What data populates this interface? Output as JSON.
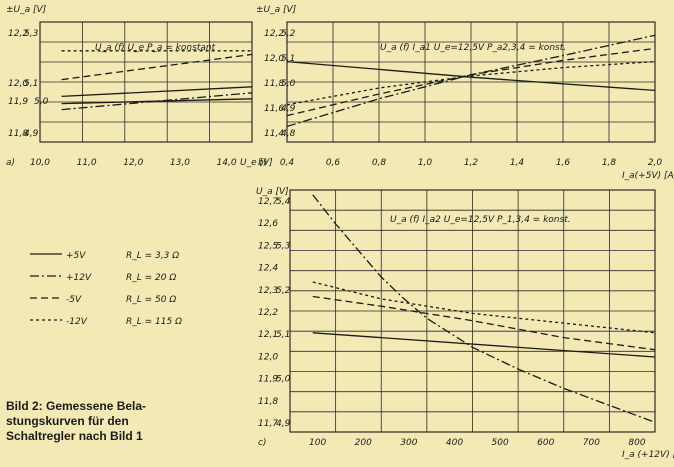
{
  "caption": "Bild 2: Gemessene Bela-\nstungskurven für den\nSchaltregler nach Bild 1",
  "legend": [
    {
      "label": "+5V",
      "rl": "R_L = 3,3 Ω",
      "style": "solid"
    },
    {
      "label": "+12V",
      "rl": "R_L = 20 Ω",
      "style": "dashdot"
    },
    {
      "label": "-5V",
      "rl": "R_L = 50 Ω",
      "style": "dashed"
    },
    {
      "label": "-12V",
      "rl": "R_L = 115 Ω",
      "style": "shortdash"
    }
  ],
  "chart_data": [
    {
      "id": "a",
      "type": "line",
      "panel_label": "a)",
      "title": "U_a (f) U_e   P_a = konstant",
      "ylabel": "±U_a [V]",
      "xlabel": "U_e [V]",
      "x_ticks": [
        "10,0",
        "11,0",
        "12,0",
        "13,0",
        "14,0"
      ],
      "y_ticks_left": [
        "12,2",
        "12,0",
        "11,8"
      ],
      "y_ticks_mid": [
        "5,3",
        "5,1",
        "4,9"
      ],
      "y_ticks_mid2": [
        "11,9",
        "5,0"
      ],
      "xlim": [
        10,
        14.9
      ],
      "series": [
        {
          "style": "solid",
          "x": [
            10.5,
            14.9
          ],
          "y": [
            0.32,
            0.36
          ]
        },
        {
          "style": "solid",
          "x": [
            10.5,
            14.9
          ],
          "y": [
            0.38,
            0.46
          ]
        },
        {
          "style": "dashdot",
          "x": [
            10.5,
            14.9
          ],
          "y": [
            0.27,
            0.41
          ]
        },
        {
          "style": "dashed",
          "x": [
            10.5,
            14.9
          ],
          "y": [
            0.52,
            0.73
          ]
        },
        {
          "style": "shortdash",
          "x": [
            10.5,
            14.9
          ],
          "y": [
            0.76,
            0.76
          ]
        }
      ]
    },
    {
      "id": "b",
      "type": "line",
      "panel_label": "b)",
      "title": "U_a (f) I_a1   U_e=12,5V P_a2,3,4 = konst.",
      "ylabel": "±U_a [V]",
      "xlabel": "I_a(+5V) [A]",
      "x_ticks": [
        "0,4",
        "0,6",
        "0,8",
        "1,0",
        "1,2",
        "1,4",
        "1,6",
        "1,8",
        "2,0"
      ],
      "y_ticks_left": [
        "12,2",
        "12,0",
        "11,8",
        "11,6",
        "11,4"
      ],
      "y_ticks_mid": [
        "5,2",
        "5,1",
        "5,0",
        "4,9",
        "4,8"
      ],
      "xlim": [
        0.4,
        2.0
      ],
      "series": [
        {
          "style": "solid",
          "x": [
            0.4,
            1.2,
            2.0
          ],
          "y": [
            0.67,
            0.54,
            0.43
          ]
        },
        {
          "style": "dashdot",
          "x": [
            0.4,
            0.8,
            1.2,
            1.6,
            2.0
          ],
          "y": [
            0.13,
            0.36,
            0.56,
            0.72,
            0.89
          ]
        },
        {
          "style": "dashed",
          "x": [
            0.4,
            0.8,
            1.2,
            1.6,
            2.0
          ],
          "y": [
            0.22,
            0.4,
            0.56,
            0.68,
            0.78
          ]
        },
        {
          "style": "shortdash",
          "x": [
            0.4,
            0.8,
            1.2,
            1.6,
            2.0
          ],
          "y": [
            0.31,
            0.45,
            0.55,
            0.62,
            0.67
          ]
        }
      ]
    },
    {
      "id": "c",
      "type": "line",
      "panel_label": "c)",
      "title": "U_a (f) I_a2   U_e=12,5V P_1,3,4 = konst.",
      "ylabel": "U_a [V]",
      "xlabel": "I_a (+12V) [mA]",
      "x_ticks": [
        "100",
        "200",
        "300",
        "400",
        "500",
        "600",
        "700",
        "800"
      ],
      "y_ticks_left": [
        "12,7",
        "12,6",
        "12,5",
        "12,4",
        "12,3",
        "12,2",
        "12,1",
        "12,0",
        "11,9",
        "11,8",
        "11,7"
      ],
      "y_ticks_mid": [
        "5,4",
        "5,3",
        "5,2",
        "5,1",
        "5,0",
        "4,9"
      ],
      "xlim": [
        0,
        800
      ],
      "series": [
        {
          "style": "solid",
          "x": [
            50,
            800
          ],
          "y": [
            0.41,
            0.31
          ]
        },
        {
          "style": "dashdot",
          "x": [
            50,
            100,
            150,
            200,
            250,
            300,
            400,
            500,
            600,
            700,
            800
          ],
          "y": [
            0.98,
            0.86,
            0.75,
            0.64,
            0.55,
            0.47,
            0.35,
            0.26,
            0.18,
            0.11,
            0.04
          ]
        },
        {
          "style": "dashed",
          "x": [
            50,
            200,
            400,
            600,
            800
          ],
          "y": [
            0.56,
            0.52,
            0.46,
            0.39,
            0.34
          ]
        },
        {
          "style": "shortdash",
          "x": [
            50,
            200,
            400,
            600,
            800
          ],
          "y": [
            0.62,
            0.55,
            0.49,
            0.45,
            0.41
          ]
        }
      ]
    }
  ]
}
